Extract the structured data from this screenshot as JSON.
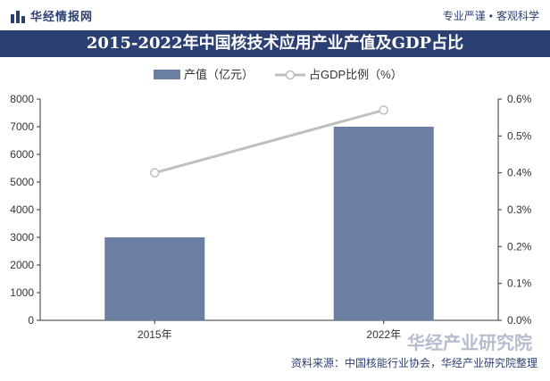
{
  "header": {
    "brand": "华经情报网",
    "tagline_left": "专业严谨",
    "tagline_right": "客观科学"
  },
  "title": "2015-2022年中国核技术应用产业产值及GDP占比",
  "watermark": {
    "logo_text": "华经产业研究院"
  },
  "source": "资料来源：中国核能行业协会，华经产业研究院整理",
  "chart_data": {
    "type": "bar",
    "categories": [
      "2015年",
      "2022年"
    ],
    "series": [
      {
        "name": "产值（亿元）",
        "type": "bar",
        "axis": "left",
        "values": [
          3000,
          7000
        ],
        "color": "#6b7fa3"
      },
      {
        "name": "占GDP比例（%）",
        "type": "line",
        "axis": "right",
        "values": [
          0.4,
          0.57
        ],
        "color": "#bfbfbf"
      }
    ],
    "y_left": {
      "min": 0,
      "max": 8000,
      "ticks": [
        0,
        1000,
        2000,
        3000,
        4000,
        5000,
        6000,
        7000,
        8000
      ]
    },
    "y_right": {
      "min": 0,
      "max": 0.6,
      "ticks": [
        "0.0%",
        "0.1%",
        "0.2%",
        "0.3%",
        "0.4%",
        "0.5%",
        "0.6%"
      ]
    },
    "legend_position": "top-center",
    "grid": false
  }
}
